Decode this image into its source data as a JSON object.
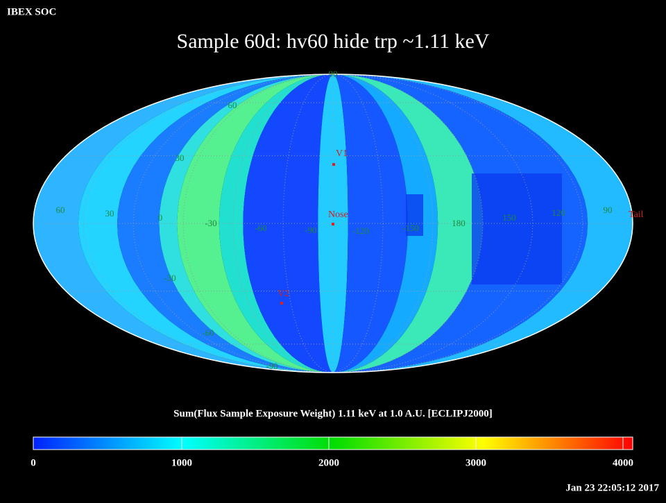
{
  "header": {
    "org": "IBEX SOC",
    "title": "Sample 60d: hv60 hide trp ~1.11 keV",
    "timestamp": "Jan 23 22:05:12 2017"
  },
  "map": {
    "grid_labels": [
      "90",
      "60",
      "30",
      "60",
      "30",
      "0",
      "-30",
      "-60",
      "-90",
      "-120",
      "-150",
      "180",
      "150",
      "120",
      "90",
      "-30",
      "-60",
      "-90"
    ],
    "markers": [
      {
        "label": "V1"
      },
      {
        "label": "Nose"
      },
      {
        "label": "V2"
      },
      {
        "label": "Tail"
      }
    ]
  },
  "colorbar": {
    "title": "Sum(Flux Sample Exposure Weight)  1.11 keV at 1.0 A.U. [ECLIPJ2000]",
    "ticks": [
      "0",
      "1000",
      "2000",
      "3000",
      "4000"
    ]
  }
}
